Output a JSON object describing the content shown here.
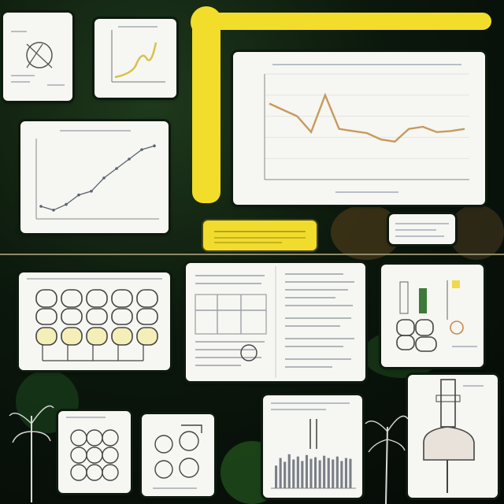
{
  "colors": {
    "background": "#0b170c",
    "pipe_yellow": "#f2dd2b",
    "panel_white": "#f6f6f3",
    "line_orange": "#c89a5c",
    "line_gray": "#5a6370"
  },
  "icons": [
    "plant-icon",
    "lamp-icon",
    "bottle-icon"
  ],
  "chart_data": [
    {
      "type": "line",
      "title": "",
      "xlabel": "",
      "ylabel": "",
      "x": [
        1,
        2,
        3,
        4,
        5,
        6,
        7,
        8,
        9,
        10,
        11,
        12,
        13,
        14,
        15
      ],
      "values": [
        72,
        66,
        60,
        45,
        80,
        48,
        46,
        44,
        38,
        36,
        48,
        50,
        45,
        46,
        48
      ]
    },
    {
      "type": "line",
      "title": "",
      "xlabel": "",
      "ylabel": "",
      "x": [
        1,
        2,
        3,
        4,
        5,
        6,
        7,
        8,
        9,
        10
      ],
      "values": [
        10,
        6,
        12,
        22,
        26,
        40,
        50,
        60,
        70,
        74
      ]
    },
    {
      "type": "bar",
      "title": "",
      "categories": [
        "1",
        "2",
        "3",
        "4",
        "5",
        "6",
        "7",
        "8",
        "9",
        "10",
        "11",
        "12",
        "13",
        "14",
        "15",
        "16",
        "17",
        "18"
      ],
      "values": [
        30,
        40,
        35,
        45,
        38,
        42,
        36,
        44,
        39,
        41,
        37,
        43,
        40,
        38,
        42,
        36,
        40,
        39
      ]
    }
  ]
}
